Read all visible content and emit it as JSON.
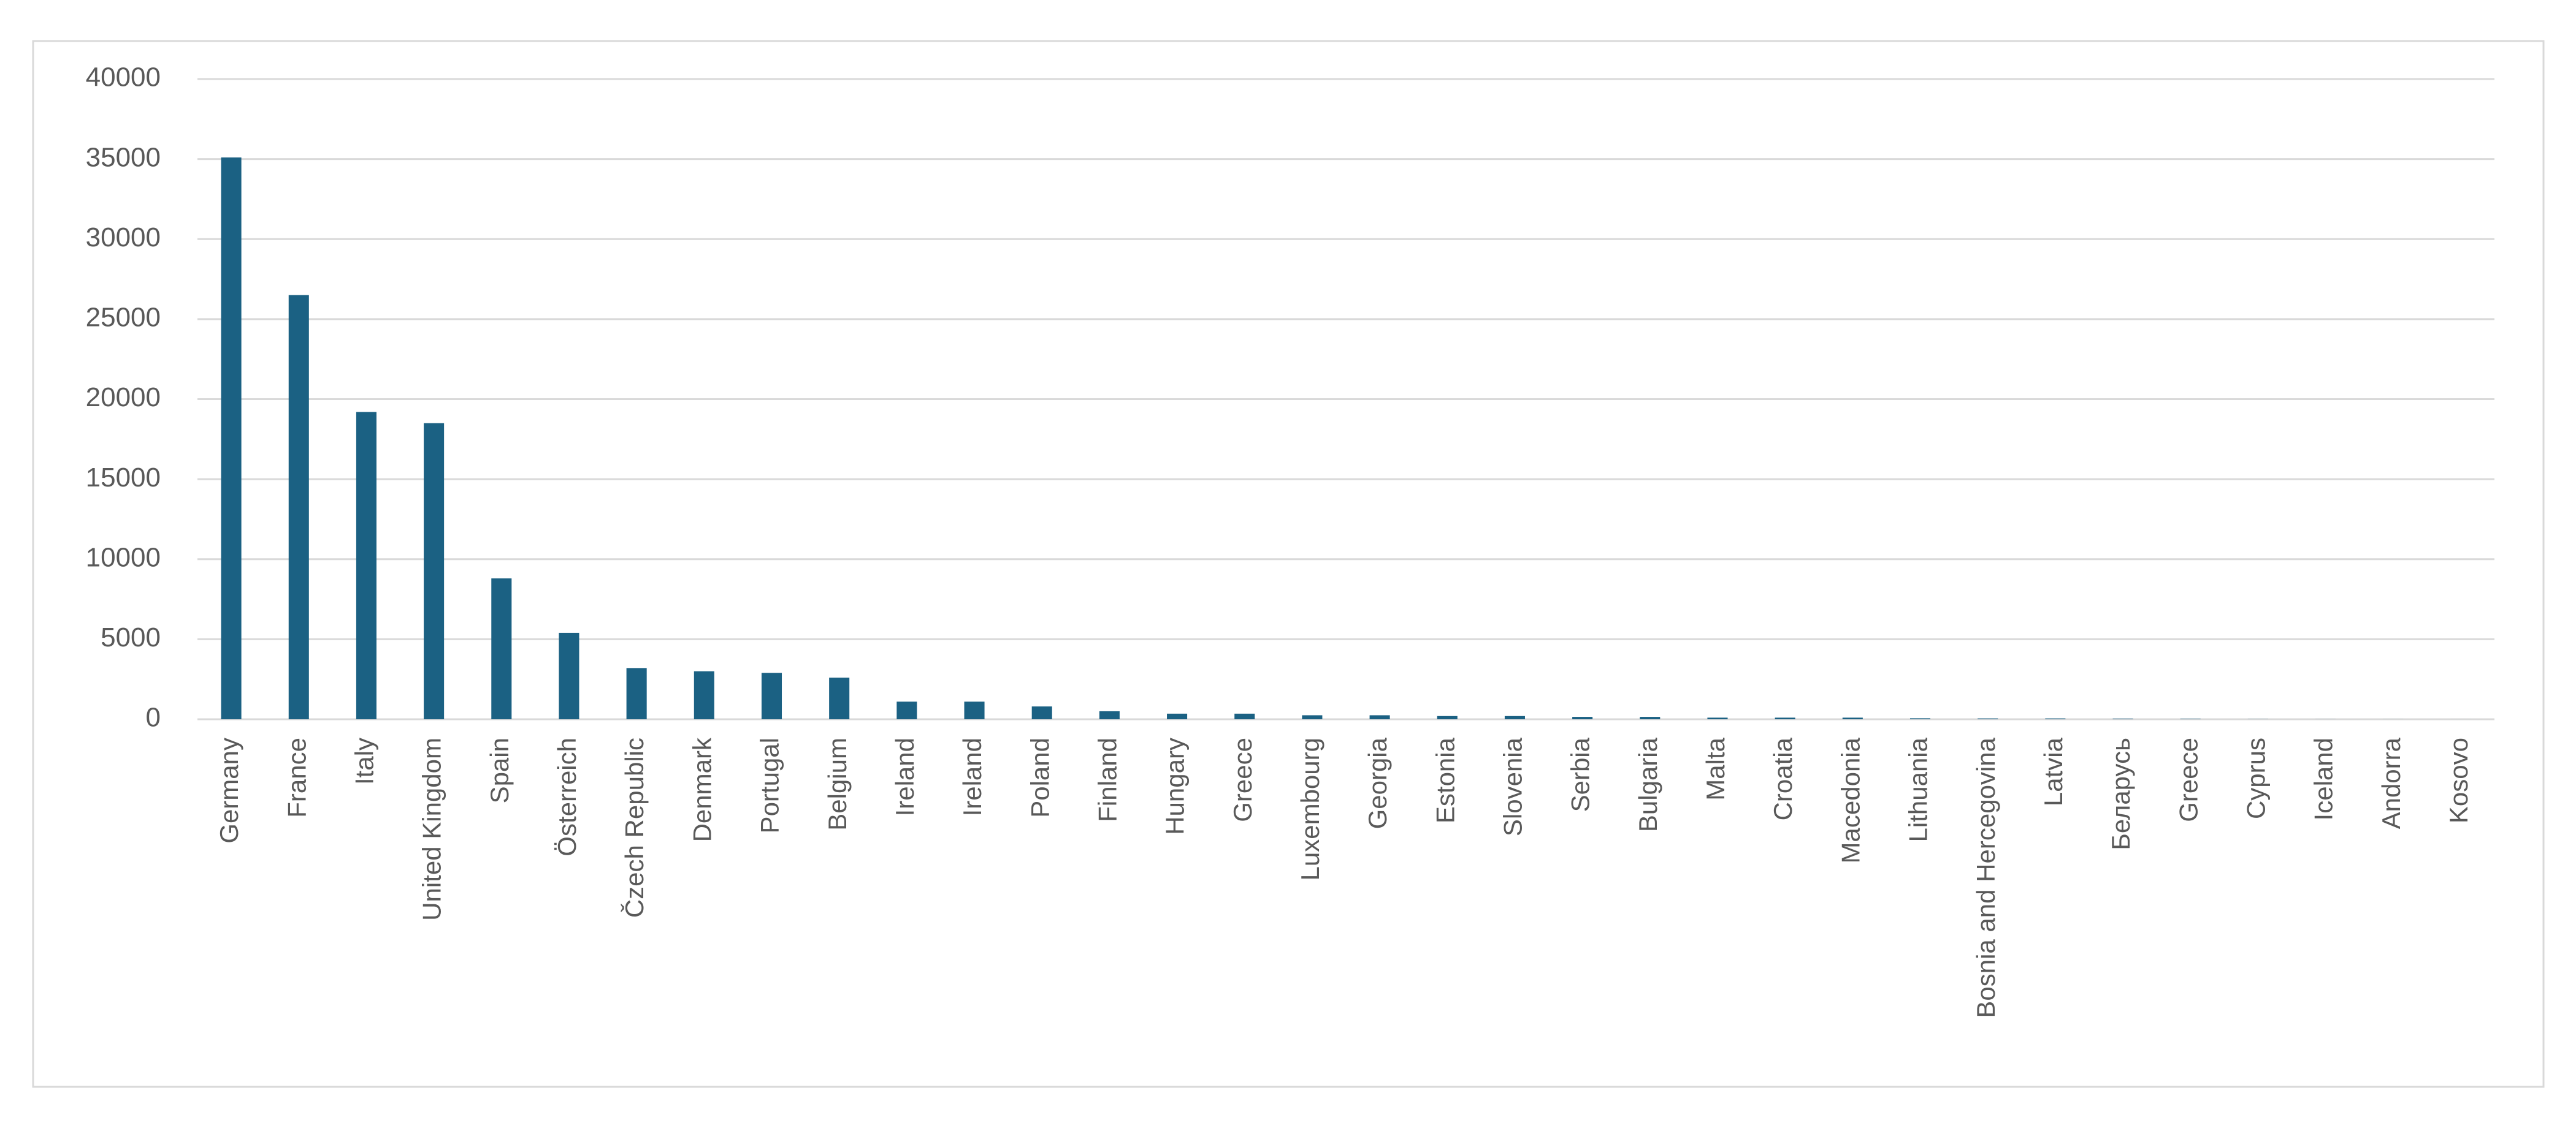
{
  "chart_data": {
    "type": "bar",
    "categories": [
      "Germany",
      "France",
      "Italy",
      "United Kingdom",
      "Spain",
      "Österreich",
      "Čzech Republic",
      "Denmark",
      "Portugal",
      "Belgium",
      "Ireland",
      "Ireland",
      "Poland",
      "Finland",
      "Hungary",
      "Greece",
      "Luxembourg",
      "Georgia",
      "Estonia",
      "Slovenia",
      "Serbia",
      "Bulgaria",
      "Malta",
      "Croatia",
      "Macedonia",
      "Lithuania",
      "Bosnia and Hercegovina",
      "Latvia",
      "Беларусь",
      "Greece",
      "Cyprus",
      "Iceland",
      "Andorra",
      "Kosovo"
    ],
    "values": [
      35100,
      26500,
      19200,
      18500,
      8800,
      5400,
      3200,
      3000,
      2900,
      2600,
      1100,
      1100,
      800,
      500,
      350,
      350,
      250,
      250,
      200,
      200,
      150,
      150,
      100,
      100,
      100,
      60,
      50,
      50,
      40,
      30,
      10,
      5,
      3,
      1
    ],
    "color": "#1b6183",
    "ylim": [
      0,
      40000
    ],
    "yticks": [
      0,
      5000,
      10000,
      15000,
      20000,
      25000,
      30000,
      35000,
      40000
    ],
    "grid": true
  }
}
